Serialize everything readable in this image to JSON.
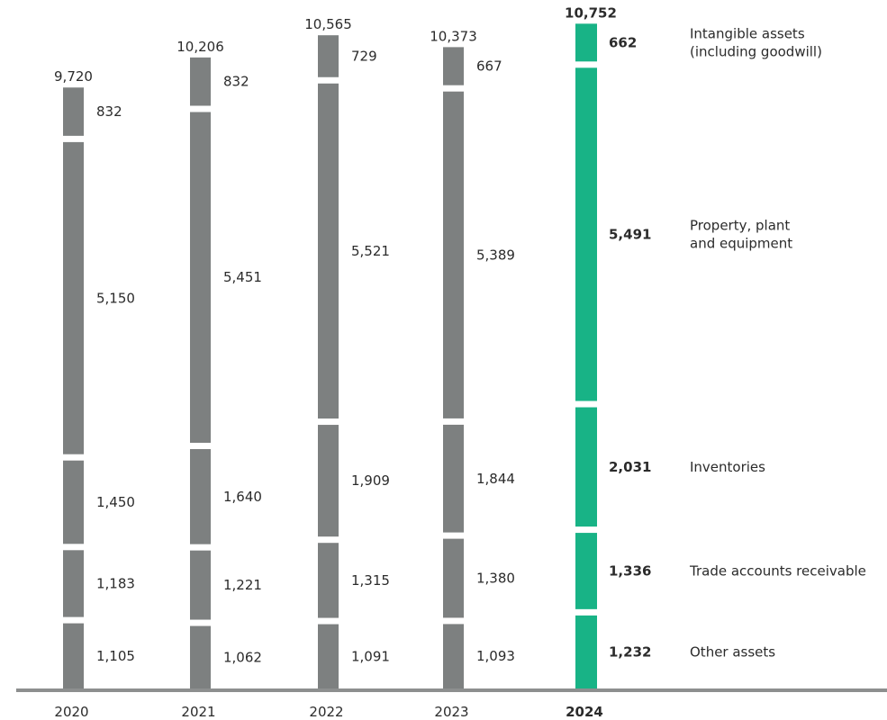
{
  "chart_data": {
    "type": "bar",
    "stacked": true,
    "categories": [
      "2020",
      "2021",
      "2022",
      "2023",
      "2024"
    ],
    "highlight_category": "2024",
    "totals": [
      9720,
      10206,
      10565,
      10373,
      10752
    ],
    "total_labels": [
      "9,720",
      "10,206",
      "10,565",
      "10,373",
      "10,752"
    ],
    "series": [
      {
        "name": "Other assets",
        "values": [
          1105,
          1062,
          1091,
          1093,
          1232
        ],
        "labels": [
          "1,105",
          "1,062",
          "1,091",
          "1,093",
          "1,232"
        ]
      },
      {
        "name": "Trade accounts receivable",
        "values": [
          1183,
          1221,
          1315,
          1380,
          1336
        ],
        "labels": [
          "1,183",
          "1,221",
          "1,315",
          "1,380",
          "1,336"
        ]
      },
      {
        "name": "Inventories",
        "values": [
          1450,
          1640,
          1909,
          1844,
          2031
        ],
        "labels": [
          "1,450",
          "1,640",
          "1,909",
          "1,844",
          "2,031"
        ]
      },
      {
        "name": "Property, plant and equipment",
        "values": [
          5150,
          5451,
          5521,
          5389,
          5491
        ],
        "labels": [
          "5,150",
          "5,451",
          "5,521",
          "5,389",
          "5,491"
        ]
      },
      {
        "name": "Intangible assets (including goodwill)",
        "values": [
          832,
          832,
          729,
          667,
          662
        ],
        "labels": [
          "832",
          "832",
          "729",
          "667",
          "662"
        ]
      }
    ],
    "legend_lines": [
      [
        "Other assets"
      ],
      [
        "Trade accounts receivable"
      ],
      [
        "Inventories"
      ],
      [
        "Property, plant",
        "and equipment"
      ],
      [
        "Intangible assets",
        "(including goodwill)"
      ]
    ],
    "legend_position": "right",
    "colors": {
      "default": "#7d8080",
      "highlight": "#18b386",
      "baseline": "#8d8f8f"
    },
    "ylim": [
      0,
      11500
    ],
    "grid": false,
    "title": "",
    "xlabel": "",
    "ylabel": ""
  }
}
